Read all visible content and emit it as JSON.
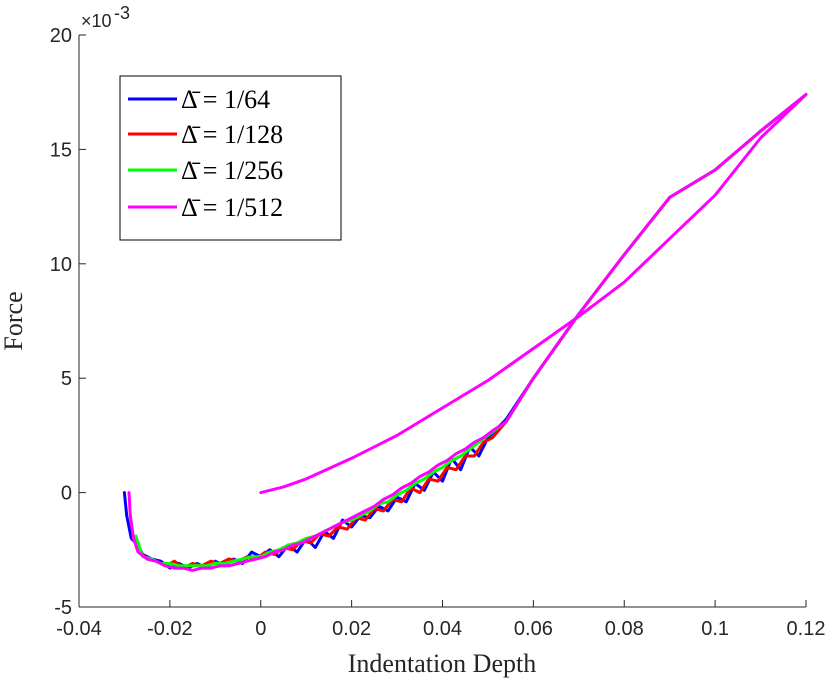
{
  "chart_data": {
    "type": "line",
    "title": "",
    "xlabel": "Indentation Depth",
    "ylabel": "Force",
    "y_exponent": {
      "base": "×10",
      "power": "-3"
    },
    "xlim": [
      -0.04,
      0.12
    ],
    "ylim": [
      -5,
      20
    ],
    "x_ticks": [
      -0.04,
      -0.02,
      0,
      0.02,
      0.04,
      0.06,
      0.08,
      0.1,
      0.12
    ],
    "x_tick_labels": [
      "-0.04",
      "-0.02",
      "0",
      "0.02",
      "0.04",
      "0.06",
      "0.08",
      "0.1",
      "0.12"
    ],
    "y_ticks": [
      -5,
      0,
      5,
      10,
      15,
      20
    ],
    "y_tick_labels": [
      "-5",
      "0",
      "5",
      "10",
      "15",
      "20"
    ],
    "grid": false,
    "legend_position": "top-left",
    "series": [
      {
        "name": "Δ̄ = 1/64",
        "color": "#0000ff",
        "x": [
          -0.03,
          -0.0295,
          -0.0285,
          -0.027,
          -0.026,
          -0.024,
          -0.022,
          -0.02,
          -0.018,
          -0.016,
          -0.014,
          -0.012,
          -0.01,
          -0.008,
          -0.006,
          -0.004,
          -0.002,
          0,
          0.002,
          0.004,
          0.006,
          0.008,
          0.01,
          0.012,
          0.014,
          0.016,
          0.018,
          0.02,
          0.022,
          0.024,
          0.026,
          0.028,
          0.03,
          0.032,
          0.034,
          0.036,
          0.038,
          0.04,
          0.042,
          0.044,
          0.046,
          0.048,
          0.05,
          0.054,
          0.06,
          0.07,
          0.08,
          0.09,
          0.1,
          0.11,
          0.12
        ],
        "y": [
          0,
          -1.0,
          -2.0,
          -2.3,
          -2.7,
          -2.9,
          -3.0,
          -3.3,
          -3.1,
          -3.3,
          -3.1,
          -3.3,
          -3.0,
          -3.2,
          -2.9,
          -3.1,
          -2.6,
          -2.8,
          -2.5,
          -2.8,
          -2.3,
          -2.6,
          -2.0,
          -2.4,
          -1.7,
          -2.0,
          -1.2,
          -1.5,
          -1.0,
          -1.1,
          -0.6,
          -0.8,
          -0.2,
          -0.4,
          0.4,
          0.1,
          0.9,
          0.5,
          1.5,
          1.0,
          2.0,
          1.6,
          2.4,
          3.2,
          5.0,
          7.8,
          10.4,
          12.9,
          14.1,
          15.8,
          17.4
        ]
      },
      {
        "name": "Δ̄ = 1/128",
        "color": "#ff0000",
        "x": [
          -0.028,
          -0.027,
          -0.025,
          -0.023,
          -0.021,
          -0.019,
          -0.017,
          -0.015,
          -0.013,
          -0.011,
          -0.009,
          -0.007,
          -0.005,
          -0.003,
          -0.001,
          0.001,
          0.003,
          0.005,
          0.007,
          0.009,
          0.011,
          0.013,
          0.015,
          0.017,
          0.019,
          0.021,
          0.023,
          0.025,
          0.027,
          0.029,
          0.031,
          0.033,
          0.035,
          0.037,
          0.039,
          0.041,
          0.043,
          0.045,
          0.047,
          0.049,
          0.051,
          0.054,
          0.06,
          0.07,
          0.08,
          0.09,
          0.1,
          0.11,
          0.12
        ],
        "y": [
          -2.0,
          -2.5,
          -2.9,
          -3.0,
          -3.2,
          -3.0,
          -3.3,
          -3.1,
          -3.2,
          -3.0,
          -3.1,
          -2.9,
          -3.0,
          -2.8,
          -2.9,
          -2.6,
          -2.7,
          -2.4,
          -2.5,
          -2.1,
          -2.2,
          -1.8,
          -1.9,
          -1.5,
          -1.6,
          -1.1,
          -1.2,
          -0.7,
          -0.8,
          -0.3,
          -0.4,
          0.2,
          0.0,
          0.6,
          0.5,
          1.1,
          1.0,
          1.6,
          1.6,
          2.2,
          2.4,
          3.1,
          5.0,
          7.8,
          10.4,
          12.9,
          14.1,
          15.8,
          17.4
        ]
      },
      {
        "name": "Δ̄ = 1/256",
        "color": "#00ff00",
        "x": [
          -0.0275,
          -0.027,
          -0.026,
          -0.024,
          -0.022,
          -0.02,
          -0.018,
          -0.016,
          -0.014,
          -0.012,
          -0.01,
          -0.008,
          -0.006,
          -0.004,
          -0.002,
          0,
          0.002,
          0.004,
          0.006,
          0.008,
          0.01,
          0.012,
          0.014,
          0.016,
          0.018,
          0.02,
          0.022,
          0.024,
          0.026,
          0.028,
          0.03,
          0.032,
          0.034,
          0.036,
          0.038,
          0.04,
          0.042,
          0.044,
          0.046,
          0.048,
          0.05,
          0.054,
          0.06,
          0.07,
          0.08,
          0.09,
          0.1,
          0.11,
          0.12
        ],
        "y": [
          -1.9,
          -2.2,
          -2.8,
          -2.9,
          -3.1,
          -3.1,
          -3.2,
          -3.2,
          -3.2,
          -3.2,
          -3.1,
          -3.1,
          -3.0,
          -2.9,
          -2.8,
          -2.8,
          -2.6,
          -2.5,
          -2.3,
          -2.2,
          -2.0,
          -1.9,
          -1.7,
          -1.5,
          -1.3,
          -1.2,
          -1.0,
          -0.8,
          -0.5,
          -0.4,
          -0.1,
          0.1,
          0.4,
          0.6,
          0.9,
          1.1,
          1.4,
          1.6,
          1.9,
          2.2,
          2.5,
          3.1,
          5.0,
          7.8,
          10.4,
          12.9,
          14.1,
          15.8,
          17.4
        ]
      },
      {
        "name": "Δ̄ = 1/512",
        "color": "#ff00ff",
        "x": [
          -0.029,
          -0.0287,
          -0.028,
          -0.027,
          -0.025,
          -0.023,
          -0.021,
          -0.019,
          -0.017,
          -0.015,
          -0.013,
          -0.011,
          -0.009,
          -0.007,
          -0.005,
          -0.003,
          -0.001,
          0.001,
          0.003,
          0.005,
          0.007,
          0.009,
          0.011,
          0.013,
          0.015,
          0.017,
          0.019,
          0.021,
          0.023,
          0.025,
          0.027,
          0.029,
          0.031,
          0.033,
          0.035,
          0.037,
          0.039,
          0.041,
          0.043,
          0.045,
          0.047,
          0.049,
          0.051,
          0.054,
          0.06,
          0.07,
          0.08,
          0.09,
          0.1,
          0.11,
          0.12,
          0.11,
          0.1,
          0.09,
          0.08,
          0.07,
          0.06,
          0.05,
          0.04,
          0.03,
          0.02,
          0.01,
          0.005,
          0
        ],
        "y": [
          0,
          -1.0,
          -2.0,
          -2.6,
          -2.9,
          -3.0,
          -3.2,
          -3.3,
          -3.3,
          -3.4,
          -3.3,
          -3.3,
          -3.2,
          -3.2,
          -3.1,
          -3.0,
          -2.9,
          -2.8,
          -2.6,
          -2.5,
          -2.3,
          -2.2,
          -2.0,
          -1.8,
          -1.6,
          -1.4,
          -1.2,
          -1.0,
          -0.8,
          -0.6,
          -0.3,
          -0.1,
          0.2,
          0.4,
          0.7,
          0.9,
          1.2,
          1.4,
          1.7,
          1.9,
          2.2,
          2.4,
          2.7,
          3.1,
          5.0,
          7.8,
          10.4,
          12.9,
          14.1,
          15.8,
          17.4,
          15.5,
          13.0,
          11.1,
          9.2,
          7.7,
          6.3,
          4.9,
          3.7,
          2.5,
          1.5,
          0.6,
          0.25,
          0
        ]
      }
    ]
  }
}
